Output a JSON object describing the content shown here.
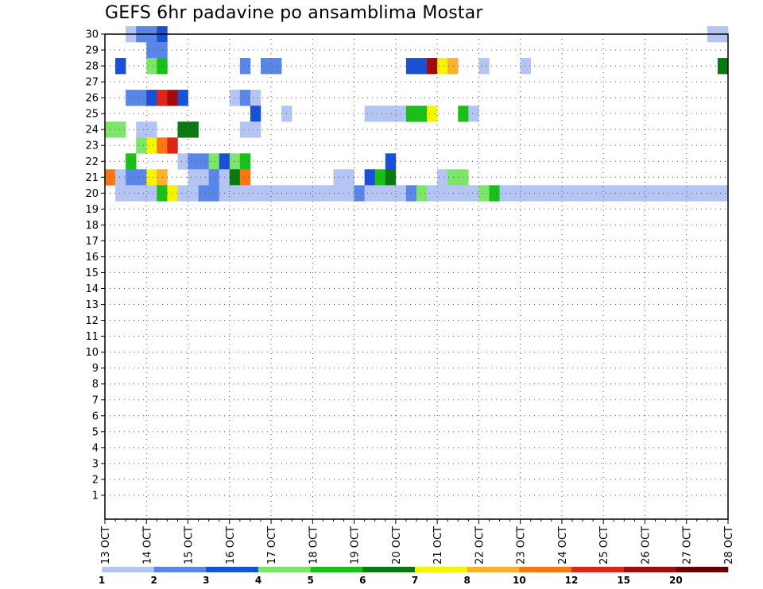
{
  "chart_data": {
    "type": "heatmap",
    "title": "GEFS 6hr padavine po ansamblima Mostar",
    "x_tick_labels": [
      "13 OCT",
      "14 OCT",
      "15 OCT",
      "16 OCT",
      "17 OCT",
      "18 OCT",
      "19 OCT",
      "20 OCT",
      "21 OCT",
      "22 OCT",
      "23 OCT",
      "24 OCT",
      "25 OCT",
      "26 OCT",
      "27 OCT",
      "28 OCT"
    ],
    "y_tick_labels": [
      "1",
      "2",
      "3",
      "4",
      "5",
      "6",
      "7",
      "8",
      "9",
      "10",
      "11",
      "12",
      "13",
      "14",
      "15",
      "16",
      "17",
      "18",
      "19",
      "20",
      "21",
      "22",
      "23",
      "24",
      "25",
      "26",
      "27",
      "28",
      "29",
      "30"
    ],
    "x_unit": "6-hour steps from 13 OCT 00Z",
    "y_range": [
      0,
      30
    ],
    "x_range": [
      0,
      60
    ],
    "grid": "dotted",
    "colorbar": {
      "levels": [
        "1",
        "2",
        "3",
        "4",
        "5",
        "6",
        "7",
        "8",
        "10",
        "12",
        "15",
        "20"
      ],
      "colors": [
        "#b4c5f4",
        "#5a86e8",
        "#1a4fd8",
        "#7ce66a",
        "#18c018",
        "#0a7a10",
        "#f7f400",
        "#fbb02e",
        "#fa7612",
        "#e0241a",
        "#a30a0a",
        "#680000"
      ]
    },
    "cells": [
      [
        0,
        30,
        2
      ],
      [
        1,
        30,
        3
      ],
      [
        1,
        30,
        4
      ],
      [
        2,
        30,
        5
      ],
      [
        0,
        30,
        58
      ],
      [
        0,
        30,
        59
      ],
      [
        1,
        29,
        4
      ],
      [
        1,
        29,
        5
      ],
      [
        2,
        28,
        1
      ],
      [
        3,
        28,
        4
      ],
      [
        4,
        28,
        5
      ],
      [
        1,
        28,
        13
      ],
      [
        1,
        28,
        15
      ],
      [
        1,
        28,
        16
      ],
      [
        2,
        28,
        29
      ],
      [
        2,
        28,
        30
      ],
      [
        10,
        28,
        31
      ],
      [
        6,
        28,
        32
      ],
      [
        7,
        28,
        33
      ],
      [
        0,
        28,
        36
      ],
      [
        0,
        28,
        40
      ],
      [
        5,
        28,
        59
      ],
      [
        0,
        26,
        -6
      ],
      [
        0,
        26,
        -5
      ],
      [
        1,
        26,
        2
      ],
      [
        1,
        26,
        3
      ],
      [
        2,
        26,
        4
      ],
      [
        9,
        26,
        5
      ],
      [
        10,
        26,
        6
      ],
      [
        2,
        26,
        7
      ],
      [
        0,
        26,
        12
      ],
      [
        1,
        26,
        13
      ],
      [
        0,
        26,
        14
      ],
      [
        0,
        25,
        -3
      ],
      [
        0,
        25,
        -2
      ],
      [
        2,
        25,
        14
      ],
      [
        0,
        25,
        17
      ],
      [
        0,
        25,
        25
      ],
      [
        0,
        25,
        26
      ],
      [
        0,
        25,
        27
      ],
      [
        0,
        25,
        28
      ],
      [
        4,
        25,
        29
      ],
      [
        4,
        25,
        30
      ],
      [
        6,
        25,
        31
      ],
      [
        4,
        25,
        34
      ],
      [
        0,
        25,
        35
      ],
      [
        3,
        24,
        0
      ],
      [
        3,
        24,
        1
      ],
      [
        0,
        24,
        3
      ],
      [
        0,
        24,
        4
      ],
      [
        5,
        24,
        7
      ],
      [
        5,
        24,
        8
      ],
      [
        0,
        24,
        13
      ],
      [
        0,
        24,
        14
      ],
      [
        3,
        23,
        3
      ],
      [
        6,
        23,
        4
      ],
      [
        8,
        23,
        5
      ],
      [
        9,
        23,
        6
      ],
      [
        4,
        22,
        2
      ],
      [
        0,
        22,
        7
      ],
      [
        1,
        22,
        8
      ],
      [
        1,
        22,
        9
      ],
      [
        3,
        22,
        10
      ],
      [
        2,
        22,
        11
      ],
      [
        3,
        22,
        12
      ],
      [
        4,
        22,
        13
      ],
      [
        2,
        22,
        27
      ],
      [
        8,
        21,
        0
      ],
      [
        0,
        21,
        1
      ],
      [
        1,
        21,
        2
      ],
      [
        1,
        21,
        3
      ],
      [
        6,
        21,
        4
      ],
      [
        7,
        21,
        5
      ],
      [
        0,
        21,
        8
      ],
      [
        0,
        21,
        9
      ],
      [
        1,
        21,
        10
      ],
      [
        0,
        21,
        11
      ],
      [
        5,
        21,
        12
      ],
      [
        8,
        21,
        13
      ],
      [
        0,
        21,
        22
      ],
      [
        0,
        21,
        23
      ],
      [
        2,
        21,
        25
      ],
      [
        4,
        21,
        26
      ],
      [
        5,
        21,
        27
      ],
      [
        0,
        21,
        32
      ],
      [
        3,
        21,
        33
      ],
      [
        3,
        21,
        34
      ],
      [
        9,
        21,
        60
      ],
      [
        0,
        20,
        1
      ],
      [
        0,
        20,
        2
      ],
      [
        0,
        20,
        3
      ],
      [
        0,
        20,
        4
      ],
      [
        4,
        20,
        5
      ],
      [
        6,
        20,
        6
      ],
      [
        0,
        20,
        7
      ],
      [
        0,
        20,
        8
      ],
      [
        1,
        20,
        9
      ],
      [
        1,
        20,
        10
      ],
      [
        0,
        20,
        11
      ],
      [
        0,
        20,
        12
      ],
      [
        0,
        20,
        13
      ],
      [
        0,
        20,
        14
      ],
      [
        0,
        20,
        15
      ],
      [
        0,
        20,
        16
      ],
      [
        0,
        20,
        17
      ],
      [
        0,
        20,
        18
      ],
      [
        0,
        20,
        19
      ],
      [
        0,
        20,
        20
      ],
      [
        0,
        20,
        21
      ],
      [
        0,
        20,
        22
      ],
      [
        0,
        20,
        23
      ],
      [
        1,
        20,
        24
      ],
      [
        0,
        20,
        25
      ],
      [
        0,
        20,
        26
      ],
      [
        0,
        20,
        27
      ],
      [
        0,
        20,
        28
      ],
      [
        1,
        20,
        29
      ],
      [
        3,
        20,
        30
      ],
      [
        0,
        20,
        31
      ],
      [
        0,
        20,
        32
      ],
      [
        0,
        20,
        33
      ],
      [
        0,
        20,
        34
      ],
      [
        0,
        20,
        35
      ],
      [
        3,
        20,
        36
      ],
      [
        4,
        20,
        37
      ],
      [
        0,
        20,
        38
      ],
      [
        0,
        20,
        39
      ],
      [
        0,
        20,
        40
      ],
      [
        0,
        20,
        41
      ],
      [
        0,
        20,
        42
      ],
      [
        0,
        20,
        43
      ],
      [
        0,
        20,
        44
      ],
      [
        0,
        20,
        45
      ],
      [
        0,
        20,
        46
      ],
      [
        0,
        20,
        47
      ],
      [
        0,
        20,
        48
      ],
      [
        0,
        20,
        49
      ],
      [
        0,
        20,
        50
      ],
      [
        0,
        20,
        51
      ],
      [
        0,
        20,
        52
      ],
      [
        0,
        20,
        53
      ],
      [
        0,
        20,
        54
      ],
      [
        0,
        20,
        55
      ],
      [
        0,
        20,
        56
      ],
      [
        0,
        20,
        57
      ],
      [
        0,
        20,
        58
      ],
      [
        0,
        20,
        59
      ],
      [
        0,
        20,
        60
      ],
      [
        0,
        20,
        17
      ],
      [
        0,
        20,
        18
      ],
      [
        0,
        20,
        19
      ]
    ]
  }
}
